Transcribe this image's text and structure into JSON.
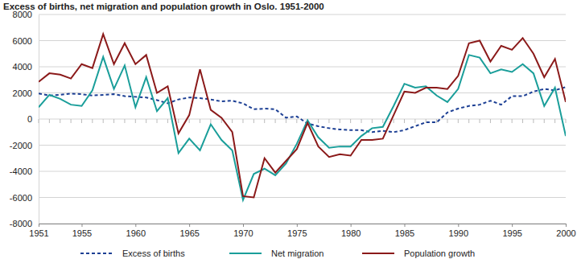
{
  "chart_data": {
    "type": "line",
    "title": "Excess of births, net migration and population growth in Oslo. 1951-2000",
    "x": [
      1951,
      1952,
      1953,
      1954,
      1955,
      1956,
      1957,
      1958,
      1959,
      1960,
      1961,
      1962,
      1963,
      1964,
      1965,
      1966,
      1967,
      1968,
      1969,
      1970,
      1971,
      1972,
      1973,
      1974,
      1975,
      1976,
      1977,
      1978,
      1979,
      1980,
      1981,
      1982,
      1983,
      1984,
      1985,
      1986,
      1987,
      1988,
      1989,
      1990,
      1991,
      1992,
      1993,
      1994,
      1995,
      1996,
      1997,
      1998,
      1999,
      2000
    ],
    "series": [
      {
        "name": "Excess of births",
        "color": "#1c3f94",
        "line_style": "dashed",
        "values": [
          1950,
          1800,
          1850,
          1950,
          1900,
          1800,
          1850,
          1900,
          1750,
          1700,
          1650,
          1450,
          1200,
          1500,
          1650,
          1600,
          1500,
          1350,
          1400,
          1200,
          750,
          800,
          750,
          100,
          200,
          -350,
          -550,
          -700,
          -800,
          -850,
          -850,
          -1000,
          -900,
          -1000,
          -850,
          -550,
          -250,
          -250,
          500,
          800,
          1000,
          1100,
          1400,
          1100,
          1750,
          1750,
          2100,
          2300,
          2200,
          2450
        ]
      },
      {
        "name": "Net migration",
        "color": "#1a9e9a",
        "line_style": "solid",
        "values": [
          900,
          1850,
          1550,
          1100,
          1000,
          2200,
          4750,
          2300,
          4100,
          900,
          3200,
          600,
          1600,
          -2600,
          -1500,
          -2400,
          -400,
          -1600,
          -2400,
          -6200,
          -4200,
          -3800,
          -4300,
          -3400,
          -1900,
          -100,
          -1400,
          -2200,
          -2100,
          -2100,
          -1300,
          -700,
          -600,
          1000,
          2700,
          2400,
          2500,
          1800,
          1300,
          2300,
          4900,
          4700,
          3500,
          3800,
          3600,
          4200,
          3500,
          1000,
          2400,
          -1300
        ]
      },
      {
        "name": "Population growth",
        "color": "#8b1a1a",
        "line_style": "solid",
        "values": [
          2850,
          3500,
          3400,
          3100,
          4200,
          3900,
          6500,
          4200,
          5800,
          4200,
          4900,
          2000,
          2500,
          -1100,
          300,
          3800,
          700,
          100,
          -1000,
          -5900,
          -6000,
          -3000,
          -4100,
          -3200,
          -2300,
          -300,
          -2100,
          -2900,
          -2700,
          -2800,
          -1600,
          -1600,
          -1500,
          300,
          2100,
          2000,
          2400,
          2400,
          2300,
          3300,
          5800,
          6000,
          4400,
          5600,
          5300,
          6200,
          5000,
          3200,
          4600,
          1300
        ]
      }
    ],
    "xlim": [
      1951,
      2000
    ],
    "xticks": [
      1951,
      1955,
      1960,
      1965,
      1970,
      1975,
      1980,
      1985,
      1990,
      1995,
      2000
    ],
    "ylim": [
      -8000,
      8000
    ],
    "yticks": [
      -8000,
      -6000,
      -4000,
      -2000,
      0,
      2000,
      4000,
      6000,
      8000
    ],
    "grid": true,
    "legend": "bottom"
  }
}
